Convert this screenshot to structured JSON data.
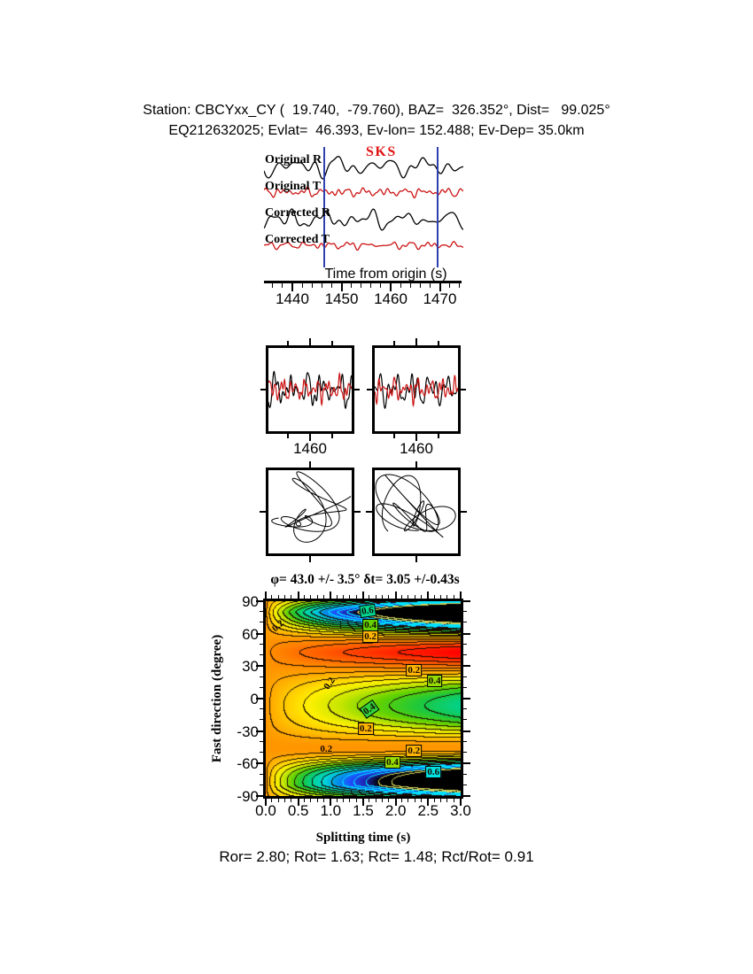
{
  "title_block": {
    "line1": "Station: CBCYxx_CY (  19.740,  -79.760), BAZ=  326.352°, Dist=   99.025°",
    "line2": "EQ212632025; Evlat=  46.393, Ev-lon= 152.488; Ev-Dep= 35.0km"
  },
  "colors": {
    "trace_r": "#000000",
    "trace_t": "#cc1414",
    "window_line": "#2e3fae",
    "phase": "#e01414"
  },
  "chart_data": [
    {
      "type": "line",
      "panel": "waveform-overview",
      "phase_label": "SKS",
      "series": [
        {
          "name": "Original R",
          "color": "#000000"
        },
        {
          "name": "Original T",
          "color": "#cc1414"
        },
        {
          "name": "Corrected R",
          "color": "#000000"
        },
        {
          "name": "Corrected T",
          "color": "#cc1414"
        }
      ],
      "x_axis": {
        "title": "Time from origin (s)",
        "range": [
          1434.8,
          1474.6
        ],
        "major_ticks": [
          1440,
          1450,
          1460,
          1470
        ],
        "minor_step": 2
      },
      "window_s": [
        1446.4,
        1469.6
      ]
    },
    {
      "type": "heatmap",
      "panel": "splitting-misfit-surface",
      "title": "φ= 43.0 +/- 3.5° δt= 3.05 +/-0.43s",
      "xlabel": "Splitting time (s)",
      "ylabel": "Fast direction (degree)",
      "x_range": [
        0,
        3
      ],
      "y_range": [
        -90,
        90
      ],
      "x_tick_labels": [
        "0.0",
        "0.5",
        "1.0",
        "1.5",
        "2.0",
        "2.5",
        "3.0"
      ],
      "y_tick_labels": [
        "90",
        "60",
        "30",
        "0",
        "-30",
        "-60",
        "-90"
      ],
      "x_minor_step": 0.1,
      "y_minor_step": 10,
      "best_fit": {
        "phi_deg": 43.0,
        "phi_err_deg": 3.5,
        "dt_s": 3.05,
        "dt_err_s": 0.43
      },
      "labeled_contours": [
        0.2,
        0.4,
        0.6
      ],
      "contour_interval": 0.05,
      "palette": [
        [
          0.0,
          "#ff0000"
        ],
        [
          0.06,
          "#ff2800"
        ],
        [
          0.12,
          "#ff5a00"
        ],
        [
          0.18,
          "#ff8200"
        ],
        [
          0.24,
          "#ffa000"
        ],
        [
          0.3,
          "#ffc800"
        ],
        [
          0.36,
          "#fff000"
        ],
        [
          0.42,
          "#c8e600"
        ],
        [
          0.48,
          "#64d200"
        ],
        [
          0.54,
          "#1ec83c"
        ],
        [
          0.6,
          "#00d291"
        ],
        [
          0.66,
          "#00d7d7"
        ],
        [
          0.72,
          "#0096e6"
        ],
        [
          0.78,
          "#1e50ff"
        ],
        [
          0.84,
          "#1e28b4"
        ],
        [
          0.9,
          "#000000"
        ],
        [
          1.0,
          "#000000"
        ]
      ],
      "surface_model": {
        "phi0": 43,
        "base_level": 0.22,
        "growth_exponent": 0.65,
        "shape_exponent": 0.85,
        "lobe_min": 0.5,
        "lobe_span": 0.5,
        "secondary": 0.18,
        "bumps": [
          {
            "phi": 78,
            "sigma": 14,
            "amp": 0.35
          },
          {
            "phi": -68,
            "sigma": 14,
            "amp": 0.45
          }
        ],
        "edge_dip": {
          "start": 80,
          "width": 10,
          "amount": 0.45,
          "exp": 1.2
        }
      },
      "annotations": [
        {
          "text": "0.6",
          "t": 1.57,
          "phi": 81,
          "bg": "#00d791",
          "rot": -8
        },
        {
          "text": "0.4",
          "t": 1.61,
          "phi": 68,
          "bg": "#64d200",
          "rot": 0
        },
        {
          "text": "0.2",
          "t": 1.61,
          "phi": 57,
          "bg": "#ffb400",
          "rot": 0
        },
        {
          "text": "0.2",
          "t": 0.19,
          "phi": 67,
          "bg": null,
          "rot": -42
        },
        {
          "text": "0.2",
          "t": 2.28,
          "phi": 26,
          "bg": "#ffb400",
          "rot": 0
        },
        {
          "text": "0.4",
          "t": 2.6,
          "phi": 16,
          "bg": "#96dc00",
          "rot": 0
        },
        {
          "text": "0.2",
          "t": 0.98,
          "phi": 14,
          "bg": null,
          "rot": -55
        },
        {
          "text": "0.4",
          "t": 1.6,
          "phi": -10,
          "bg": "#32d23c",
          "rot": -35
        },
        {
          "text": "0.2",
          "t": 1.54,
          "phi": -28,
          "bg": "#ffb400",
          "rot": 0
        },
        {
          "text": "0.2",
          "t": 0.93,
          "phi": -47,
          "bg": null,
          "rot": 0
        },
        {
          "text": "0.2",
          "t": 2.28,
          "phi": -48,
          "bg": "#ffb400",
          "rot": 0
        },
        {
          "text": "0.4",
          "t": 1.95,
          "phi": -59,
          "bg": "#96dc00",
          "rot": 0
        },
        {
          "text": "0.6",
          "t": 2.58,
          "phi": -68,
          "bg": "#00e0e0",
          "rot": 0
        }
      ]
    },
    {
      "type": "line",
      "panel": "window-zoom",
      "labels": [
        "1460",
        "1460"
      ],
      "series_colors": [
        "#000000",
        "#cc1414"
      ]
    },
    {
      "type": "scatter",
      "panel": "particle-motion",
      "panel_count": 2
    }
  ],
  "footer": {
    "stats_line": "Ror= 2.80; Rot= 1.63; Rct= 1.48; Rct/Rot= 0.91",
    "values": {
      "Ror": 2.8,
      "Rot": 1.63,
      "Rct": 1.48,
      "Rct_over_Rot": 0.91
    }
  }
}
